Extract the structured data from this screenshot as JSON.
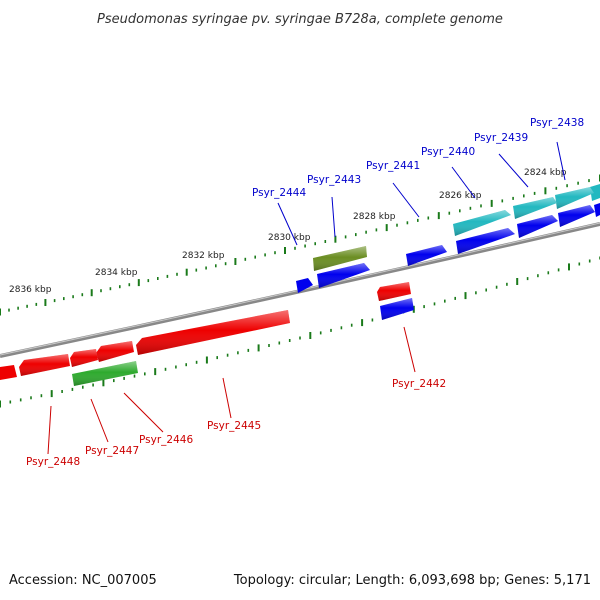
{
  "title": "Pseudomonas syringae pv. syringae B728a, complete genome",
  "footer": {
    "accession": "Accession: NC_007005",
    "summary": "Topology: circular; Length: 6,093,698 bp; Genes: 5,171"
  },
  "colors": {
    "forward": "#0000ee",
    "reverse": "#ee0000",
    "forward_rna": "#22b8c0",
    "forward_other": "#6b8e23",
    "reverse_other": "#2eaa2e",
    "backbone": "#8a8a8a",
    "ticks": "#1a7a1a"
  },
  "scale_labels": [
    "2836 kbp",
    "2834 kbp",
    "2832 kbp",
    "2830 kbp",
    "2828 kbp",
    "2826 kbp",
    "2824 kbp"
  ],
  "gene_labels": {
    "Psyr_2438": "Psyr_2438",
    "Psyr_2439": "Psyr_2439",
    "Psyr_2440": "Psyr_2440",
    "Psyr_2441": "Psyr_2441",
    "Psyr_2442": "Psyr_2442",
    "Psyr_2443": "Psyr_2443",
    "Psyr_2444": "Psyr_2444",
    "Psyr_2445": "Psyr_2445",
    "Psyr_2446": "Psyr_2446",
    "Psyr_2447": "Psyr_2447",
    "Psyr_2448": "Psyr_2448"
  }
}
